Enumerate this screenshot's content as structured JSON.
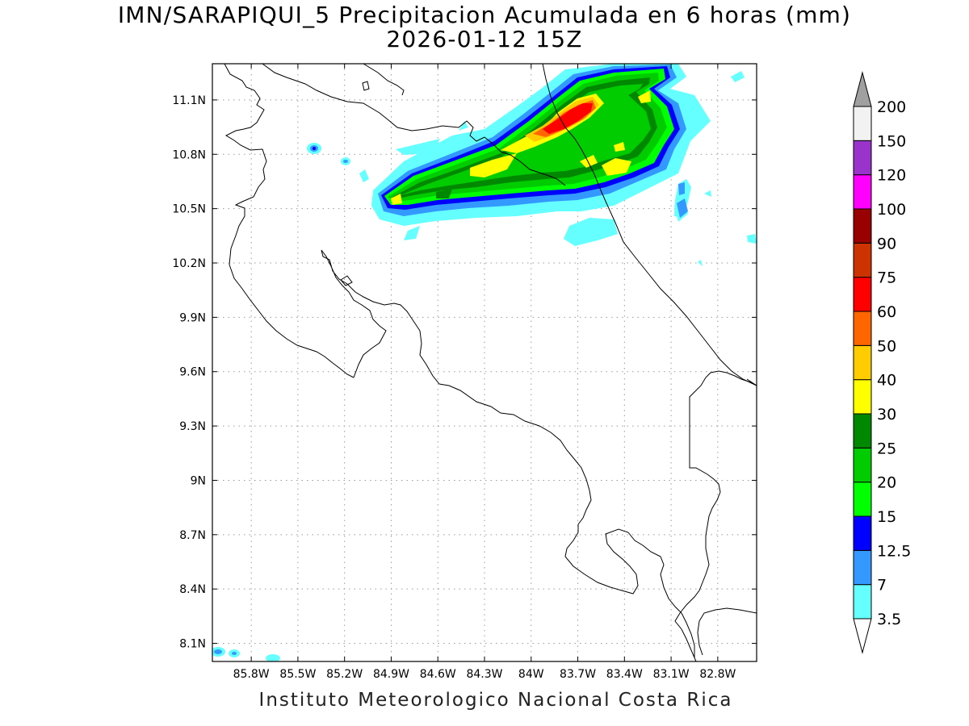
{
  "title": {
    "line1": "IMN/SARAPIQUI_5 Precipitacion Acumulada en 6 horas (mm)",
    "line2": "2026-01-12 15Z"
  },
  "footer": "Instituto Meteorologico Nacional Costa Rica",
  "map": {
    "type": "precipitation-contour-map",
    "lon_range": [
      -86.05,
      -82.55
    ],
    "lat_range": [
      8.0,
      11.3
    ],
    "y_ticks": [
      {
        "value": 11.1,
        "label": "11.1N"
      },
      {
        "value": 10.8,
        "label": "10.8N"
      },
      {
        "value": 10.5,
        "label": "10.5N"
      },
      {
        "value": 10.2,
        "label": "10.2N"
      },
      {
        "value": 9.9,
        "label": "9.9N"
      },
      {
        "value": 9.6,
        "label": "9.6N"
      },
      {
        "value": 9.3,
        "label": "9.3N"
      },
      {
        "value": 9.0,
        "label": "9N"
      },
      {
        "value": 8.7,
        "label": "8.7N"
      },
      {
        "value": 8.4,
        "label": "8.4N"
      },
      {
        "value": 8.1,
        "label": "8.1N"
      }
    ],
    "x_ticks": [
      {
        "value": -85.8,
        "label": "85.8W"
      },
      {
        "value": -85.5,
        "label": "85.5W"
      },
      {
        "value": -85.2,
        "label": "85.2W"
      },
      {
        "value": -84.9,
        "label": "84.9W"
      },
      {
        "value": -84.6,
        "label": "84.6W"
      },
      {
        "value": -84.3,
        "label": "84.3W"
      },
      {
        "value": -84.0,
        "label": "84W"
      },
      {
        "value": -83.7,
        "label": "83.7W"
      },
      {
        "value": -83.4,
        "label": "83.4W"
      },
      {
        "value": -83.1,
        "label": "83.1W"
      },
      {
        "value": -82.8,
        "label": "82.8W"
      }
    ],
    "grid": "dotted",
    "max_precip_area": "northern plains near 83.7W 11.0N"
  },
  "colorbar": {
    "units": "mm",
    "colors": [
      "#ffffff",
      "#66ffff",
      "#3399ff",
      "#0000ff",
      "#00ff00",
      "#00cc00",
      "#008800",
      "#ffff00",
      "#ffcc00",
      "#ff6600",
      "#ff0000",
      "#cc3300",
      "#990000",
      "#ff00ff",
      "#9933cc",
      "#f2f2f2",
      "#a0a0a0"
    ],
    "labels": [
      "3.5",
      "7",
      "12.5",
      "15",
      "20",
      "25",
      "30",
      "40",
      "50",
      "60",
      "75",
      "90",
      "100",
      "120",
      "150",
      "200"
    ]
  }
}
